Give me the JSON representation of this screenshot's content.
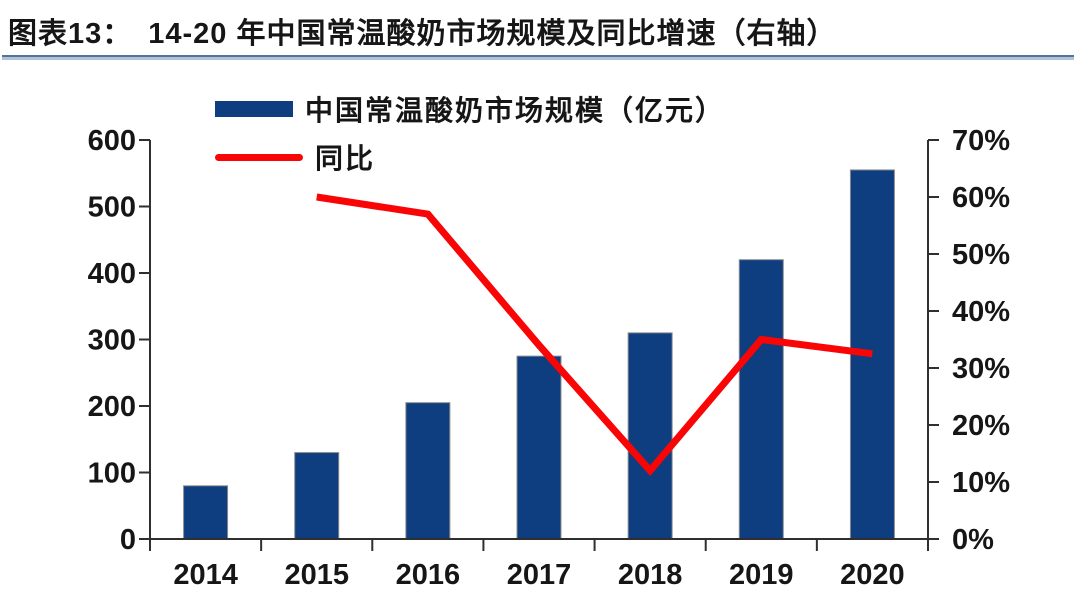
{
  "header": {
    "figure_label": "图表13：",
    "figure_title": "14-20 年中国常温酸奶市场规模及同比增速（右轴）"
  },
  "chart_data": {
    "type": "bar",
    "subtype": "bar+line combo, dual axis",
    "title": "14-20 年中国常温酸奶市场规模及同比增速（右轴）",
    "categories": [
      "2014",
      "2015",
      "2016",
      "2017",
      "2018",
      "2019",
      "2020"
    ],
    "series": [
      {
        "name": "中国常温酸奶市场规模（亿元）",
        "type": "bar",
        "axis": "left",
        "values": [
          80,
          130,
          205,
          275,
          310,
          420,
          555
        ]
      },
      {
        "name": "同比",
        "type": "line",
        "axis": "right",
        "unit": "%",
        "values": [
          null,
          60,
          57,
          34,
          12,
          35,
          32.5
        ]
      }
    ],
    "left_axis": {
      "min": 0,
      "max": 600,
      "step": 100,
      "ticks": [
        "0",
        "100",
        "200",
        "300",
        "400",
        "500",
        "600"
      ]
    },
    "right_axis": {
      "min": 0,
      "max": 70,
      "step": 10,
      "ticks": [
        "0%",
        "10%",
        "20%",
        "30%",
        "40%",
        "50%",
        "60%",
        "70%"
      ]
    },
    "legend_position": "top-left",
    "grid": false
  },
  "colors": {
    "bar": "#0e3e7f",
    "line": "#f90505",
    "axis": "#2f2f2f",
    "text": "#161616"
  }
}
